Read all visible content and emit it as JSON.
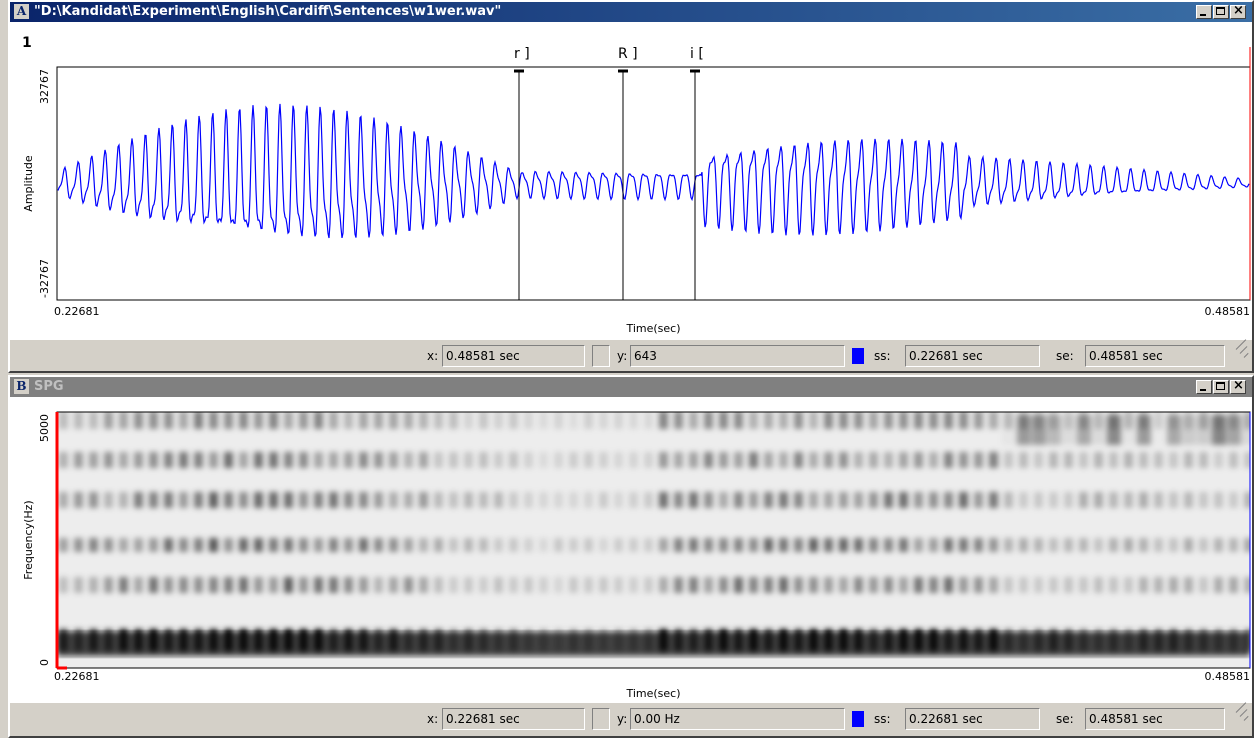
{
  "windows": [
    {
      "letter": "A",
      "title": "\"D:\\Kandidat\\Experiment\\English\\Cardiff\\Sentences\\w1wer.wav\"",
      "channel": "1",
      "y_axis": {
        "label": "Amplitude",
        "top": "32767",
        "bottom": "-32767"
      },
      "x_axis": {
        "label": "Time(sec)",
        "start": "0.22681",
        "end": "0.48581"
      },
      "markers": [
        "r ]",
        "R ]",
        "i ["
      ],
      "status": {
        "x_label": "x:",
        "x_value": "0.48581 sec",
        "y_label": "y:",
        "y_value": "643",
        "ss_label": "ss:",
        "ss_value": "0.22681 sec",
        "se_label": "se:",
        "se_value": "0.48581 sec"
      }
    },
    {
      "letter": "B",
      "title": "SPG",
      "y_axis": {
        "label": "Frequency(Hz)",
        "top": "5000",
        "bottom": "0"
      },
      "x_axis": {
        "label": "Time(sec)",
        "start": "0.22681",
        "end": "0.48581"
      },
      "status": {
        "x_label": "x:",
        "x_value": "0.22681 sec",
        "y_label": "y:",
        "y_value": "0.00 Hz",
        "ss_label": "ss:",
        "ss_value": "0.22681 sec",
        "se_label": "se:",
        "se_value": "0.48581 sec"
      }
    }
  ]
}
